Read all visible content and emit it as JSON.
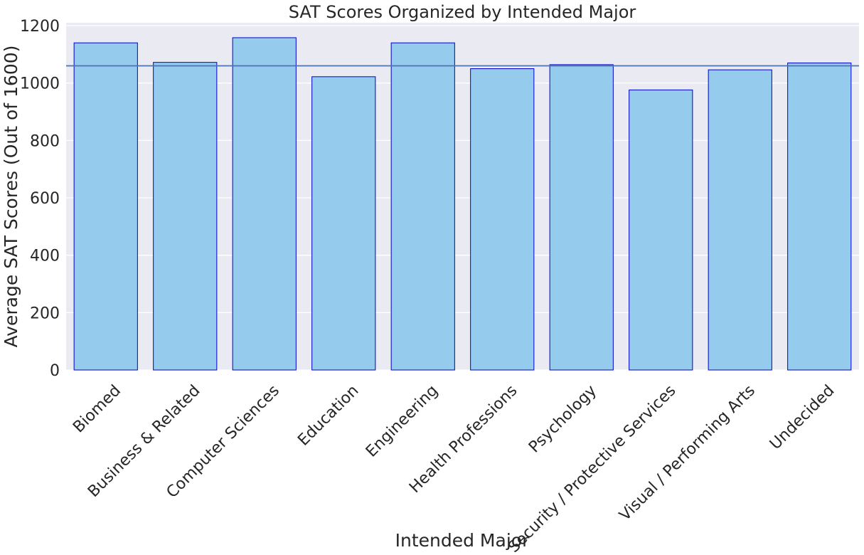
{
  "chart_data": {
    "type": "bar",
    "title": "SAT Scores Organized by Intended Major",
    "xlabel": "Intended Major",
    "ylabel": "Average SAT Scores (Out of 1600)",
    "categories": [
      "Biomed",
      "Business & Related",
      "Computer Sciences",
      "Education",
      "Engineering",
      "Health Professions",
      "Psychology",
      "Security / Protective Services",
      "Visual / Performing Arts",
      "Undecided"
    ],
    "values": [
      1140,
      1072,
      1158,
      1022,
      1140,
      1050,
      1064,
      976,
      1046,
      1070
    ],
    "reference_line": 1060,
    "ylim": [
      0,
      1210
    ],
    "yticks": [
      "0",
      "200",
      "400",
      "600",
      "800",
      "1000",
      "1200"
    ],
    "grid": true,
    "legend": "none",
    "colors": {
      "plot_background": "#eaeaf2",
      "bar_fill": "#95cbed",
      "bar_edge": "#0000cc",
      "reference_line": "#4c72b0",
      "grid": "#ffffff",
      "text": "#262626"
    }
  }
}
